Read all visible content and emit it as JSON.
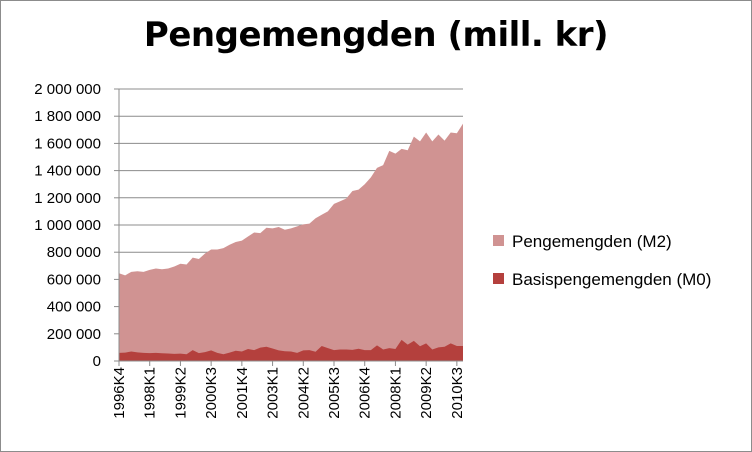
{
  "chart_data": {
    "type": "area",
    "title": "Pengemengden (mill. kr)",
    "xlabel": "",
    "ylabel": "",
    "ylim": [
      0,
      2000000
    ],
    "y_ticks": [
      0,
      200000,
      400000,
      600000,
      800000,
      1000000,
      1200000,
      1400000,
      1600000,
      1800000,
      2000000
    ],
    "y_tick_labels": [
      "0",
      "200 000",
      "400 000",
      "600 000",
      "800 000",
      "1 000 000",
      "1 200 000",
      "1 400 000",
      "1 600 000",
      "1 800 000",
      "2 000 000"
    ],
    "x_tick_labels": [
      "1996K4",
      "1998K1",
      "1999K2",
      "2000K3",
      "2001K4",
      "2003K1",
      "2004K2",
      "2005K3",
      "2006K4",
      "2008K1",
      "2009K2",
      "2010K3"
    ],
    "grid": true,
    "legend_position": "right",
    "x": [
      "1996K4",
      "1997K1",
      "1997K2",
      "1997K3",
      "1997K4",
      "1998K1",
      "1998K2",
      "1998K3",
      "1998K4",
      "1999K1",
      "1999K2",
      "1999K3",
      "1999K4",
      "2000K1",
      "2000K2",
      "2000K3",
      "2000K4",
      "2001K1",
      "2001K2",
      "2001K3",
      "2001K4",
      "2002K1",
      "2002K2",
      "2002K3",
      "2002K4",
      "2003K1",
      "2003K2",
      "2003K3",
      "2003K4",
      "2004K1",
      "2004K2",
      "2004K3",
      "2004K4",
      "2005K1",
      "2005K2",
      "2005K3",
      "2005K4",
      "2006K1",
      "2006K2",
      "2006K3",
      "2006K4",
      "2007K1",
      "2007K2",
      "2007K3",
      "2007K4",
      "2008K1",
      "2008K2",
      "2008K3",
      "2008K4",
      "2009K1",
      "2009K2",
      "2009K3",
      "2009K4",
      "2010K1",
      "2010K2",
      "2010K3",
      "2010K4"
    ],
    "series": [
      {
        "name": "Pengemengden (M2)",
        "color": "#d09392",
        "values": [
          645000,
          630000,
          655000,
          660000,
          655000,
          670000,
          680000,
          675000,
          680000,
          695000,
          715000,
          710000,
          760000,
          750000,
          790000,
          820000,
          820000,
          830000,
          855000,
          875000,
          885000,
          915000,
          945000,
          940000,
          980000,
          975000,
          985000,
          965000,
          975000,
          990000,
          1005000,
          1010000,
          1050000,
          1075000,
          1100000,
          1155000,
          1175000,
          1195000,
          1250000,
          1260000,
          1300000,
          1350000,
          1420000,
          1440000,
          1545000,
          1525000,
          1560000,
          1550000,
          1650000,
          1615000,
          1680000,
          1615000,
          1665000,
          1620000,
          1680000,
          1675000,
          1745000
        ]
      },
      {
        "name": "Basispengemengden (M0)",
        "color": "#b4403d",
        "values": [
          60000,
          62000,
          70000,
          63000,
          60000,
          58000,
          60000,
          57000,
          55000,
          52000,
          54000,
          50000,
          80000,
          58000,
          65000,
          78000,
          60000,
          50000,
          62000,
          75000,
          70000,
          88000,
          80000,
          98000,
          105000,
          92000,
          78000,
          72000,
          70000,
          60000,
          78000,
          80000,
          68000,
          110000,
          95000,
          80000,
          85000,
          85000,
          82000,
          90000,
          80000,
          80000,
          115000,
          85000,
          95000,
          88000,
          155000,
          120000,
          148000,
          108000,
          130000,
          85000,
          100000,
          105000,
          130000,
          110000,
          110000
        ]
      }
    ]
  }
}
